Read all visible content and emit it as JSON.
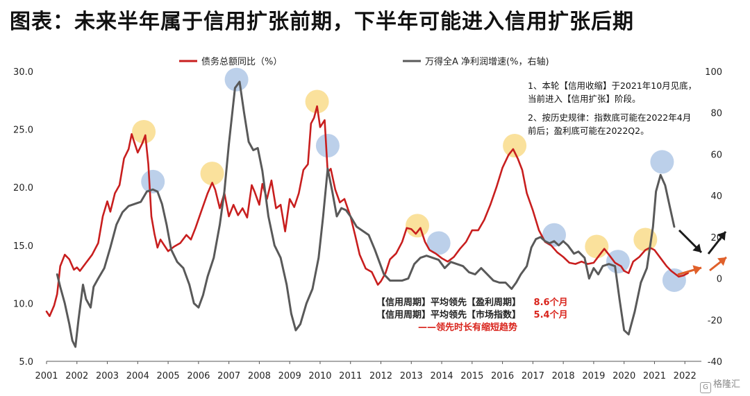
{
  "title": "图表：未来半年属于信用扩张前期，下半年可能进入信用扩张后期",
  "notes": {
    "line1": "1、本轮【信用收缩】于2021年10月见底，",
    "line2": "当前进入【信用扩张】阶段。",
    "line3": "2、按历史规律：指数底可能在2022年4月",
    "line4": "前后；盈利底可能在2022Q2。"
  },
  "lead": {
    "row1_label": "【信用周期】平均领先【盈利周期】",
    "row1_value": "8.6个月",
    "row2_label": "【信用周期】平均领先【市场指数】",
    "row2_value": "5.4个月",
    "row3": "——领先时长有缩短趋势"
  },
  "watermark": "格隆汇",
  "colors": {
    "credit": "#c81e1e",
    "profit": "#595959",
    "peak": "#f5c94a",
    "trough": "#8fb0dc",
    "arrow_orange": "#e0602a",
    "arrow_black": "#1a1a1a"
  },
  "chart_data": {
    "type": "line",
    "x_range": [
      2001,
      2023
    ],
    "x_ticks": [
      "2001",
      "2002",
      "2003",
      "2004",
      "2005",
      "2006",
      "2007",
      "2008",
      "2009",
      "2010",
      "2011",
      "2012",
      "2013",
      "2014",
      "2015",
      "2016",
      "2017",
      "2018",
      "2019",
      "2020",
      "2021",
      "2022"
    ],
    "y_left": {
      "range": [
        5,
        30
      ],
      "ticks": [
        "5.0",
        "10.0",
        "15.0",
        "20.0",
        "25.0",
        "30.0"
      ]
    },
    "y_right": {
      "range": [
        -40,
        100
      ],
      "ticks": [
        "-40",
        "-20",
        "0",
        "20",
        "40",
        "60",
        "80",
        "100"
      ]
    },
    "legend_position": "top",
    "series": [
      {
        "name": "债务总额同比（%）",
        "axis": "left",
        "points": [
          [
            2001.0,
            9.3
          ],
          [
            2001.1,
            8.9
          ],
          [
            2001.25,
            9.8
          ],
          [
            2001.35,
            10.8
          ],
          [
            2001.45,
            13.2
          ],
          [
            2001.6,
            14.2
          ],
          [
            2001.75,
            13.8
          ],
          [
            2001.9,
            12.9
          ],
          [
            2002.0,
            13.1
          ],
          [
            2002.1,
            12.8
          ],
          [
            2002.3,
            13.5
          ],
          [
            2002.5,
            14.2
          ],
          [
            2002.7,
            15.2
          ],
          [
            2002.85,
            17.5
          ],
          [
            2003.0,
            18.8
          ],
          [
            2003.1,
            17.9
          ],
          [
            2003.25,
            19.5
          ],
          [
            2003.4,
            20.2
          ],
          [
            2003.55,
            22.5
          ],
          [
            2003.7,
            23.3
          ],
          [
            2003.8,
            24.6
          ],
          [
            2003.9,
            23.8
          ],
          [
            2004.0,
            23.0
          ],
          [
            2004.15,
            23.8
          ],
          [
            2004.25,
            24.5
          ],
          [
            2004.35,
            22.0
          ],
          [
            2004.45,
            17.5
          ],
          [
            2004.55,
            16.0
          ],
          [
            2004.65,
            14.8
          ],
          [
            2004.75,
            15.5
          ],
          [
            2004.9,
            14.9
          ],
          [
            2005.0,
            14.5
          ],
          [
            2005.2,
            14.9
          ],
          [
            2005.4,
            15.2
          ],
          [
            2005.6,
            15.9
          ],
          [
            2005.75,
            15.5
          ],
          [
            2005.9,
            16.5
          ],
          [
            2006.1,
            18.0
          ],
          [
            2006.3,
            19.5
          ],
          [
            2006.45,
            20.4
          ],
          [
            2006.55,
            19.8
          ],
          [
            2006.7,
            18.2
          ],
          [
            2006.85,
            19.5
          ],
          [
            2007.0,
            17.5
          ],
          [
            2007.15,
            18.5
          ],
          [
            2007.3,
            17.6
          ],
          [
            2007.45,
            18.2
          ],
          [
            2007.6,
            17.4
          ],
          [
            2007.75,
            20.2
          ],
          [
            2007.85,
            19.6
          ],
          [
            2008.0,
            18.5
          ],
          [
            2008.1,
            20.3
          ],
          [
            2008.25,
            19.0
          ],
          [
            2008.4,
            20.6
          ],
          [
            2008.55,
            18.2
          ],
          [
            2008.7,
            18.5
          ],
          [
            2008.85,
            16.2
          ],
          [
            2009.0,
            19.0
          ],
          [
            2009.15,
            18.3
          ],
          [
            2009.3,
            19.5
          ],
          [
            2009.45,
            21.5
          ],
          [
            2009.6,
            22.0
          ],
          [
            2009.7,
            25.5
          ],
          [
            2009.8,
            26.0
          ],
          [
            2009.9,
            27.0
          ],
          [
            2010.0,
            25.2
          ],
          [
            2010.15,
            25.8
          ],
          [
            2010.25,
            21.3
          ],
          [
            2010.35,
            21.6
          ],
          [
            2010.5,
            19.8
          ],
          [
            2010.65,
            18.7
          ],
          [
            2010.8,
            19.0
          ],
          [
            2011.0,
            17.5
          ],
          [
            2011.15,
            15.9
          ],
          [
            2011.3,
            14.2
          ],
          [
            2011.5,
            13.0
          ],
          [
            2011.7,
            12.7
          ],
          [
            2011.9,
            11.6
          ],
          [
            2012.0,
            11.9
          ],
          [
            2012.15,
            12.6
          ],
          [
            2012.3,
            13.8
          ],
          [
            2012.5,
            14.3
          ],
          [
            2012.7,
            15.3
          ],
          [
            2012.85,
            16.5
          ],
          [
            2013.0,
            16.4
          ],
          [
            2013.15,
            16.0
          ],
          [
            2013.3,
            16.5
          ],
          [
            2013.45,
            15.3
          ],
          [
            2013.6,
            14.6
          ],
          [
            2013.8,
            14.3
          ],
          [
            2014.0,
            13.9
          ],
          [
            2014.2,
            13.6
          ],
          [
            2014.4,
            14.0
          ],
          [
            2014.6,
            14.7
          ],
          [
            2014.8,
            15.3
          ],
          [
            2015.0,
            16.3
          ],
          [
            2015.2,
            16.3
          ],
          [
            2015.4,
            17.2
          ],
          [
            2015.6,
            18.5
          ],
          [
            2015.8,
            20.0
          ],
          [
            2016.0,
            21.7
          ],
          [
            2016.2,
            22.8
          ],
          [
            2016.35,
            23.3
          ],
          [
            2016.5,
            22.5
          ],
          [
            2016.65,
            21.5
          ],
          [
            2016.8,
            19.5
          ],
          [
            2017.0,
            18.0
          ],
          [
            2017.2,
            16.3
          ],
          [
            2017.4,
            15.3
          ],
          [
            2017.6,
            15.0
          ],
          [
            2017.8,
            14.4
          ],
          [
            2018.0,
            14.0
          ],
          [
            2018.2,
            13.5
          ],
          [
            2018.4,
            13.4
          ],
          [
            2018.6,
            13.6
          ],
          [
            2018.8,
            13.4
          ],
          [
            2019.0,
            13.5
          ],
          [
            2019.2,
            14.2
          ],
          [
            2019.35,
            14.7
          ],
          [
            2019.5,
            14.2
          ],
          [
            2019.7,
            13.5
          ],
          [
            2019.9,
            13.2
          ],
          [
            2020.0,
            12.8
          ],
          [
            2020.15,
            12.6
          ],
          [
            2020.3,
            13.6
          ],
          [
            2020.5,
            14.0
          ],
          [
            2020.7,
            14.6
          ],
          [
            2020.85,
            14.8
          ],
          [
            2021.0,
            14.6
          ],
          [
            2021.2,
            13.9
          ],
          [
            2021.4,
            13.2
          ],
          [
            2021.55,
            12.8
          ],
          [
            2021.7,
            12.5
          ],
          [
            2021.8,
            12.3
          ],
          [
            2021.95,
            12.4
          ],
          [
            2022.1,
            12.6
          ]
        ]
      },
      {
        "name": "万得全A 净利润增速(%，右轴)",
        "axis": "right",
        "points": [
          [
            2001.35,
            2
          ],
          [
            2001.45,
            -4
          ],
          [
            2001.6,
            -12
          ],
          [
            2001.75,
            -22
          ],
          [
            2001.85,
            -30
          ],
          [
            2001.95,
            -33
          ],
          [
            2002.05,
            -20
          ],
          [
            2002.2,
            -3
          ],
          [
            2002.3,
            -10
          ],
          [
            2002.45,
            -14
          ],
          [
            2002.55,
            -4
          ],
          [
            2002.7,
            0
          ],
          [
            2002.9,
            5
          ],
          [
            2003.1,
            15
          ],
          [
            2003.3,
            26
          ],
          [
            2003.5,
            32
          ],
          [
            2003.7,
            35
          ],
          [
            2003.9,
            36
          ],
          [
            2004.1,
            37
          ],
          [
            2004.3,
            42
          ],
          [
            2004.5,
            43
          ],
          [
            2004.65,
            42
          ],
          [
            2004.8,
            36
          ],
          [
            2004.95,
            26
          ],
          [
            2005.1,
            14
          ],
          [
            2005.3,
            8
          ],
          [
            2005.5,
            5
          ],
          [
            2005.7,
            -3
          ],
          [
            2005.85,
            -12
          ],
          [
            2006.0,
            -14
          ],
          [
            2006.15,
            -8
          ],
          [
            2006.3,
            1
          ],
          [
            2006.5,
            10
          ],
          [
            2006.7,
            26
          ],
          [
            2006.85,
            42
          ],
          [
            2007.0,
            65
          ],
          [
            2007.2,
            92
          ],
          [
            2007.35,
            95
          ],
          [
            2007.5,
            80
          ],
          [
            2007.65,
            66
          ],
          [
            2007.8,
            62
          ],
          [
            2007.95,
            63
          ],
          [
            2008.1,
            52
          ],
          [
            2008.3,
            30
          ],
          [
            2008.5,
            16
          ],
          [
            2008.7,
            10
          ],
          [
            2008.9,
            -3
          ],
          [
            2009.05,
            -17
          ],
          [
            2009.2,
            -25
          ],
          [
            2009.35,
            -22
          ],
          [
            2009.55,
            -12
          ],
          [
            2009.75,
            -5
          ],
          [
            2009.95,
            10
          ],
          [
            2010.1,
            30
          ],
          [
            2010.25,
            53
          ],
          [
            2010.4,
            42
          ],
          [
            2010.55,
            30
          ],
          [
            2010.7,
            34
          ],
          [
            2010.85,
            33
          ],
          [
            2011.0,
            30
          ],
          [
            2011.2,
            25
          ],
          [
            2011.4,
            23
          ],
          [
            2011.6,
            21
          ],
          [
            2011.8,
            14
          ],
          [
            2011.95,
            8
          ],
          [
            2012.1,
            2
          ],
          [
            2012.3,
            -1
          ],
          [
            2012.5,
            -1
          ],
          [
            2012.7,
            -1
          ],
          [
            2012.9,
            0
          ],
          [
            2013.1,
            7
          ],
          [
            2013.3,
            10
          ],
          [
            2013.5,
            11
          ],
          [
            2013.7,
            10
          ],
          [
            2013.9,
            9
          ],
          [
            2014.1,
            5
          ],
          [
            2014.3,
            8
          ],
          [
            2014.5,
            7
          ],
          [
            2014.7,
            6
          ],
          [
            2014.9,
            3
          ],
          [
            2015.1,
            2
          ],
          [
            2015.3,
            5
          ],
          [
            2015.5,
            2
          ],
          [
            2015.7,
            -1
          ],
          [
            2015.9,
            -2
          ],
          [
            2016.1,
            -2
          ],
          [
            2016.3,
            -5
          ],
          [
            2016.45,
            -2
          ],
          [
            2016.6,
            2
          ],
          [
            2016.8,
            6
          ],
          [
            2016.95,
            15
          ],
          [
            2017.1,
            19
          ],
          [
            2017.25,
            20
          ],
          [
            2017.4,
            18
          ],
          [
            2017.55,
            17
          ],
          [
            2017.7,
            18
          ],
          [
            2017.85,
            16
          ],
          [
            2018.0,
            18
          ],
          [
            2018.15,
            16
          ],
          [
            2018.35,
            12
          ],
          [
            2018.5,
            13
          ],
          [
            2018.7,
            10
          ],
          [
            2018.85,
            0
          ],
          [
            2019.0,
            5
          ],
          [
            2019.15,
            2
          ],
          [
            2019.3,
            6
          ],
          [
            2019.5,
            7
          ],
          [
            2019.7,
            6
          ],
          [
            2019.85,
            -10
          ],
          [
            2020.0,
            -25
          ],
          [
            2020.15,
            -27
          ],
          [
            2020.35,
            -16
          ],
          [
            2020.55,
            -2
          ],
          [
            2020.75,
            5
          ],
          [
            2020.95,
            25
          ],
          [
            2021.05,
            42
          ],
          [
            2021.2,
            50
          ],
          [
            2021.35,
            45
          ],
          [
            2021.5,
            35
          ],
          [
            2021.65,
            25
          ]
        ]
      }
    ],
    "peak_markers": [
      [
        2004.2,
        24.8
      ],
      [
        2006.45,
        21.2
      ],
      [
        2009.9,
        27.4
      ],
      [
        2013.2,
        16.7
      ],
      [
        2016.4,
        23.6
      ],
      [
        2019.1,
        14.9
      ],
      [
        2020.7,
        15.5
      ]
    ],
    "trough_markers": [
      [
        2004.5,
        20.5
      ],
      [
        2007.25,
        29.3
      ],
      [
        2010.25,
        23.6
      ],
      [
        2013.9,
        15.2
      ],
      [
        2017.7,
        15.9
      ],
      [
        2019.8,
        13.6
      ],
      [
        2021.25,
        22.2
      ],
      [
        2021.65,
        12.0
      ]
    ]
  }
}
